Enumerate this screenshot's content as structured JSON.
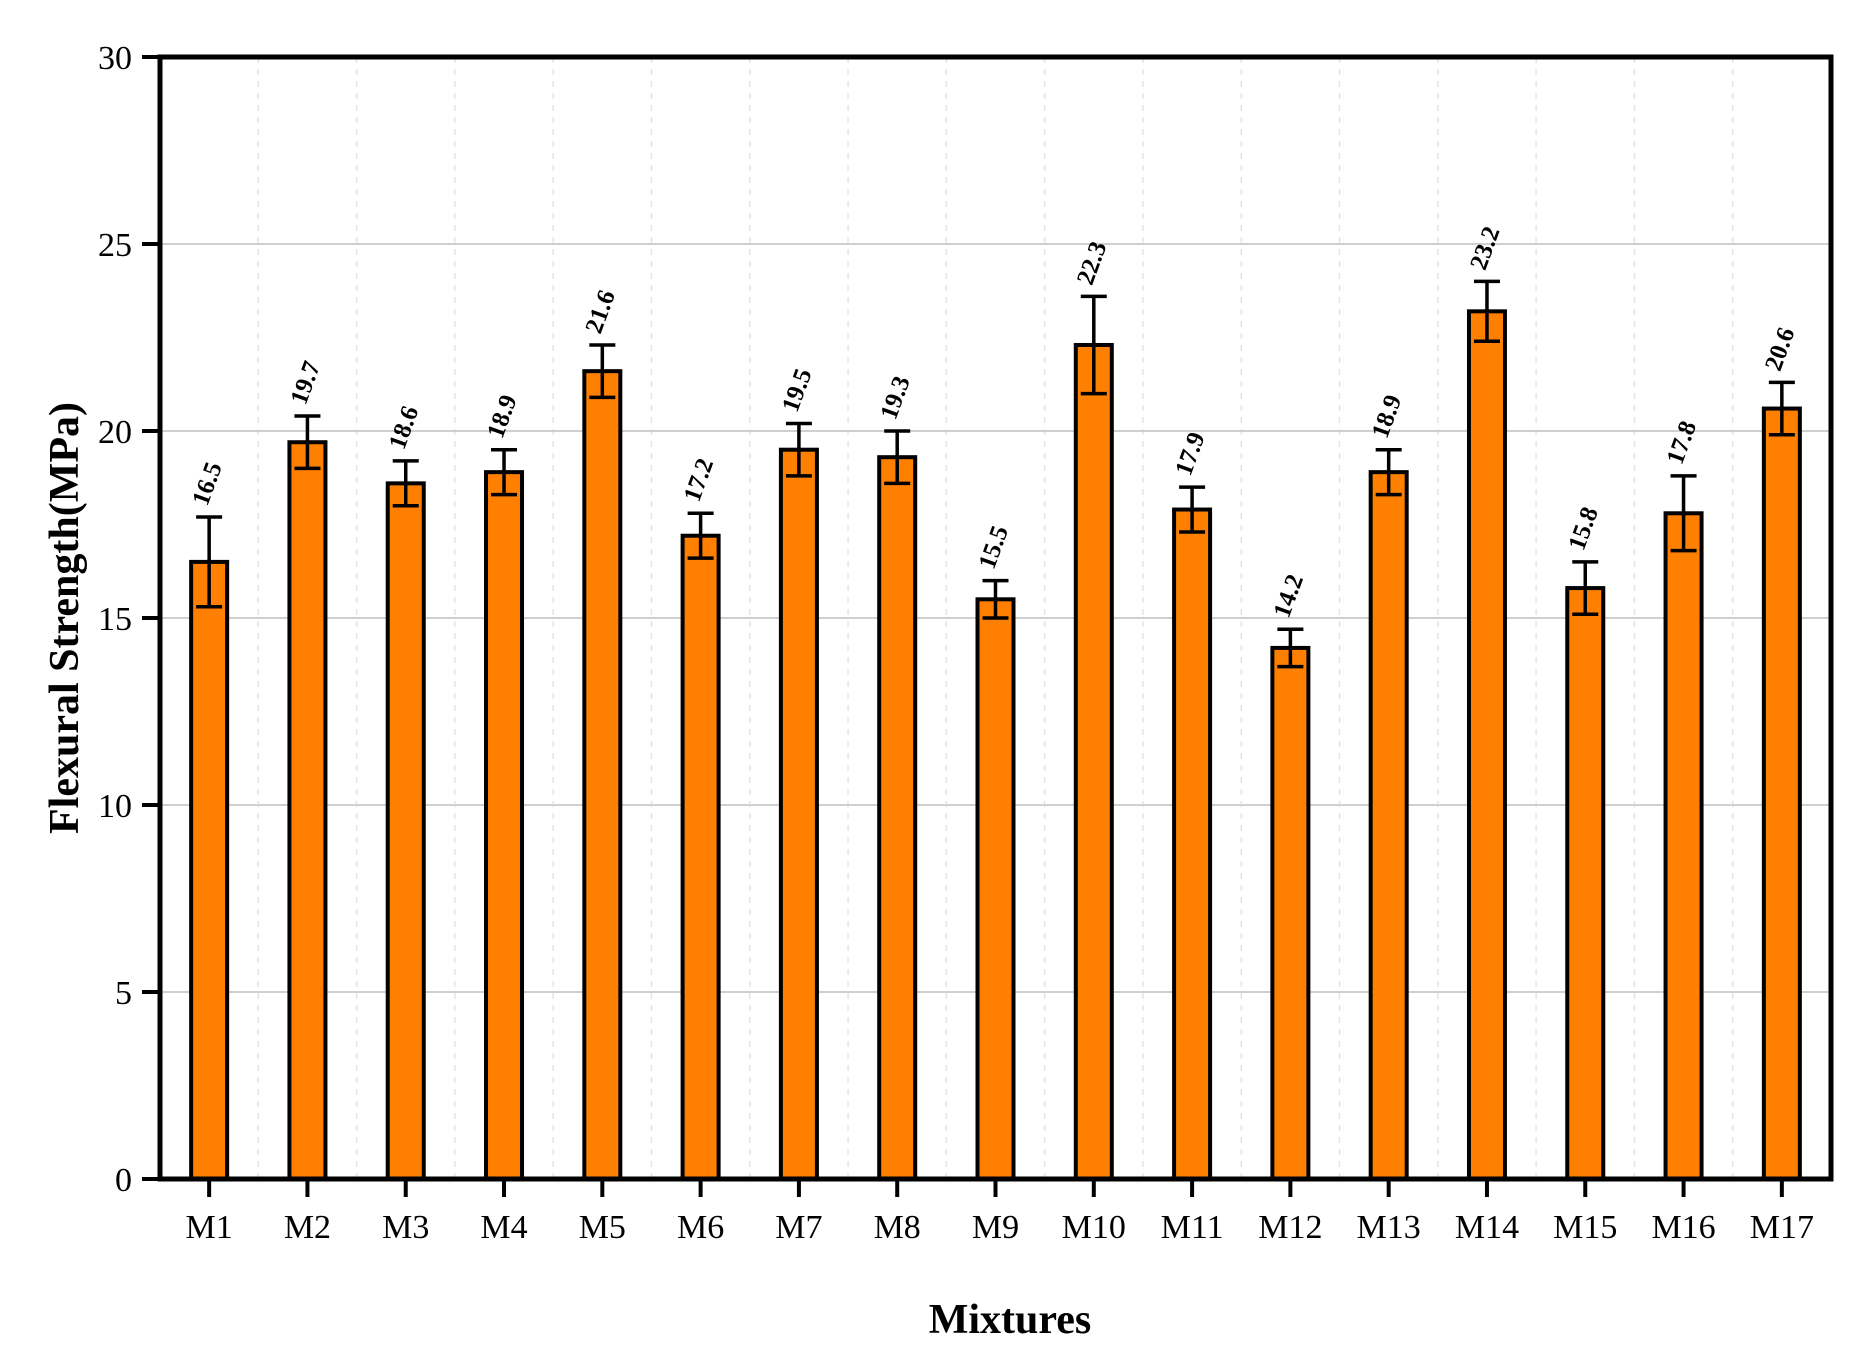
{
  "chart_data": {
    "type": "bar",
    "xlabel": "Mixtures",
    "ylabel": "Flexural Strength(MPa)",
    "ylim": [
      0,
      30
    ],
    "y_ticks": [
      "0",
      "5",
      "10",
      "15",
      "20",
      "25",
      "30"
    ],
    "categories": [
      "M1",
      "M2",
      "M3",
      "M4",
      "M5",
      "M6",
      "M7",
      "M8",
      "M9",
      "M10",
      "M11",
      "M12",
      "M13",
      "M14",
      "M15",
      "M16",
      "M17"
    ],
    "values": [
      16.5,
      19.7,
      18.6,
      18.9,
      21.6,
      17.2,
      19.5,
      19.3,
      15.5,
      22.3,
      17.9,
      14.2,
      18.9,
      23.2,
      15.8,
      17.8,
      20.6
    ],
    "value_labels": [
      "16.5",
      "19.7",
      "18.6",
      "18.9",
      "21.6",
      "17.2",
      "19.5",
      "19.3",
      "15.5",
      "22.3",
      "17.9",
      "14.2",
      "18.9",
      "23.2",
      "15.8",
      "17.8",
      "20.6"
    ],
    "errors": [
      1.2,
      0.7,
      0.6,
      0.6,
      0.7,
      0.6,
      0.7,
      0.7,
      0.5,
      1.3,
      0.6,
      0.5,
      0.6,
      0.8,
      0.7,
      1.0,
      0.7
    ],
    "grid": true,
    "legend": "none",
    "colors": {
      "bar": "#ff8000",
      "bar_edge": "#000000",
      "grid_major": "#cfcfcf",
      "grid_minor": "#e4e4e4"
    }
  }
}
